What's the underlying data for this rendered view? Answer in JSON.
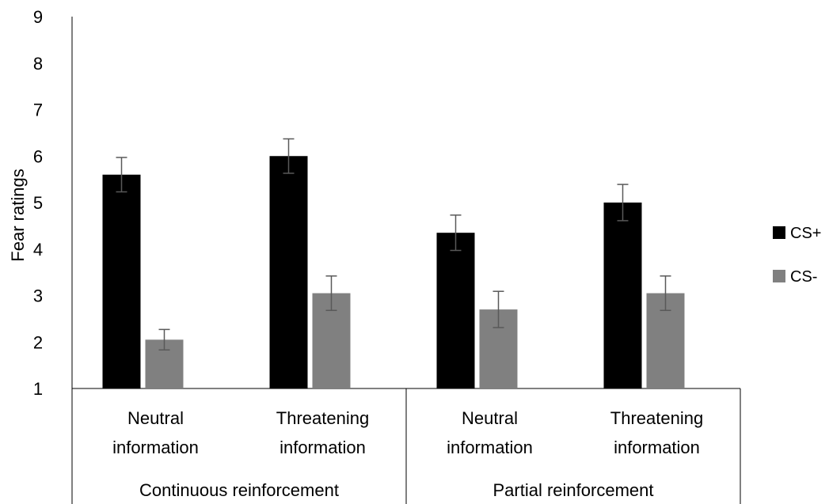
{
  "chart_data": {
    "type": "bar",
    "title": "",
    "ylabel": "Fear ratings",
    "xlabel": "",
    "ylim": [
      1,
      9
    ],
    "yticks": [
      1,
      2,
      3,
      4,
      5,
      6,
      7,
      8,
      9
    ],
    "grid": false,
    "legend_position": "right",
    "categories": [
      [
        "Neutral",
        "information"
      ],
      [
        "Threatening",
        "information"
      ],
      [
        "Neutral",
        "information"
      ],
      [
        "Threatening",
        "information"
      ]
    ],
    "groups": [
      {
        "label": "Continuous reinforcement",
        "span": [
          0,
          1
        ]
      },
      {
        "label": "Partial reinforcement",
        "span": [
          2,
          3
        ]
      }
    ],
    "series": [
      {
        "name": "CS+",
        "color": "#000000",
        "values": [
          5.6,
          6.0,
          4.35,
          5.0
        ],
        "errors": [
          0.37,
          0.37,
          0.38,
          0.39
        ]
      },
      {
        "name": "CS-",
        "color": "#808080",
        "values": [
          2.05,
          3.05,
          2.7,
          3.05
        ],
        "errors": [
          0.22,
          0.37,
          0.39,
          0.37
        ]
      }
    ],
    "error_bar_color": "#595959"
  }
}
